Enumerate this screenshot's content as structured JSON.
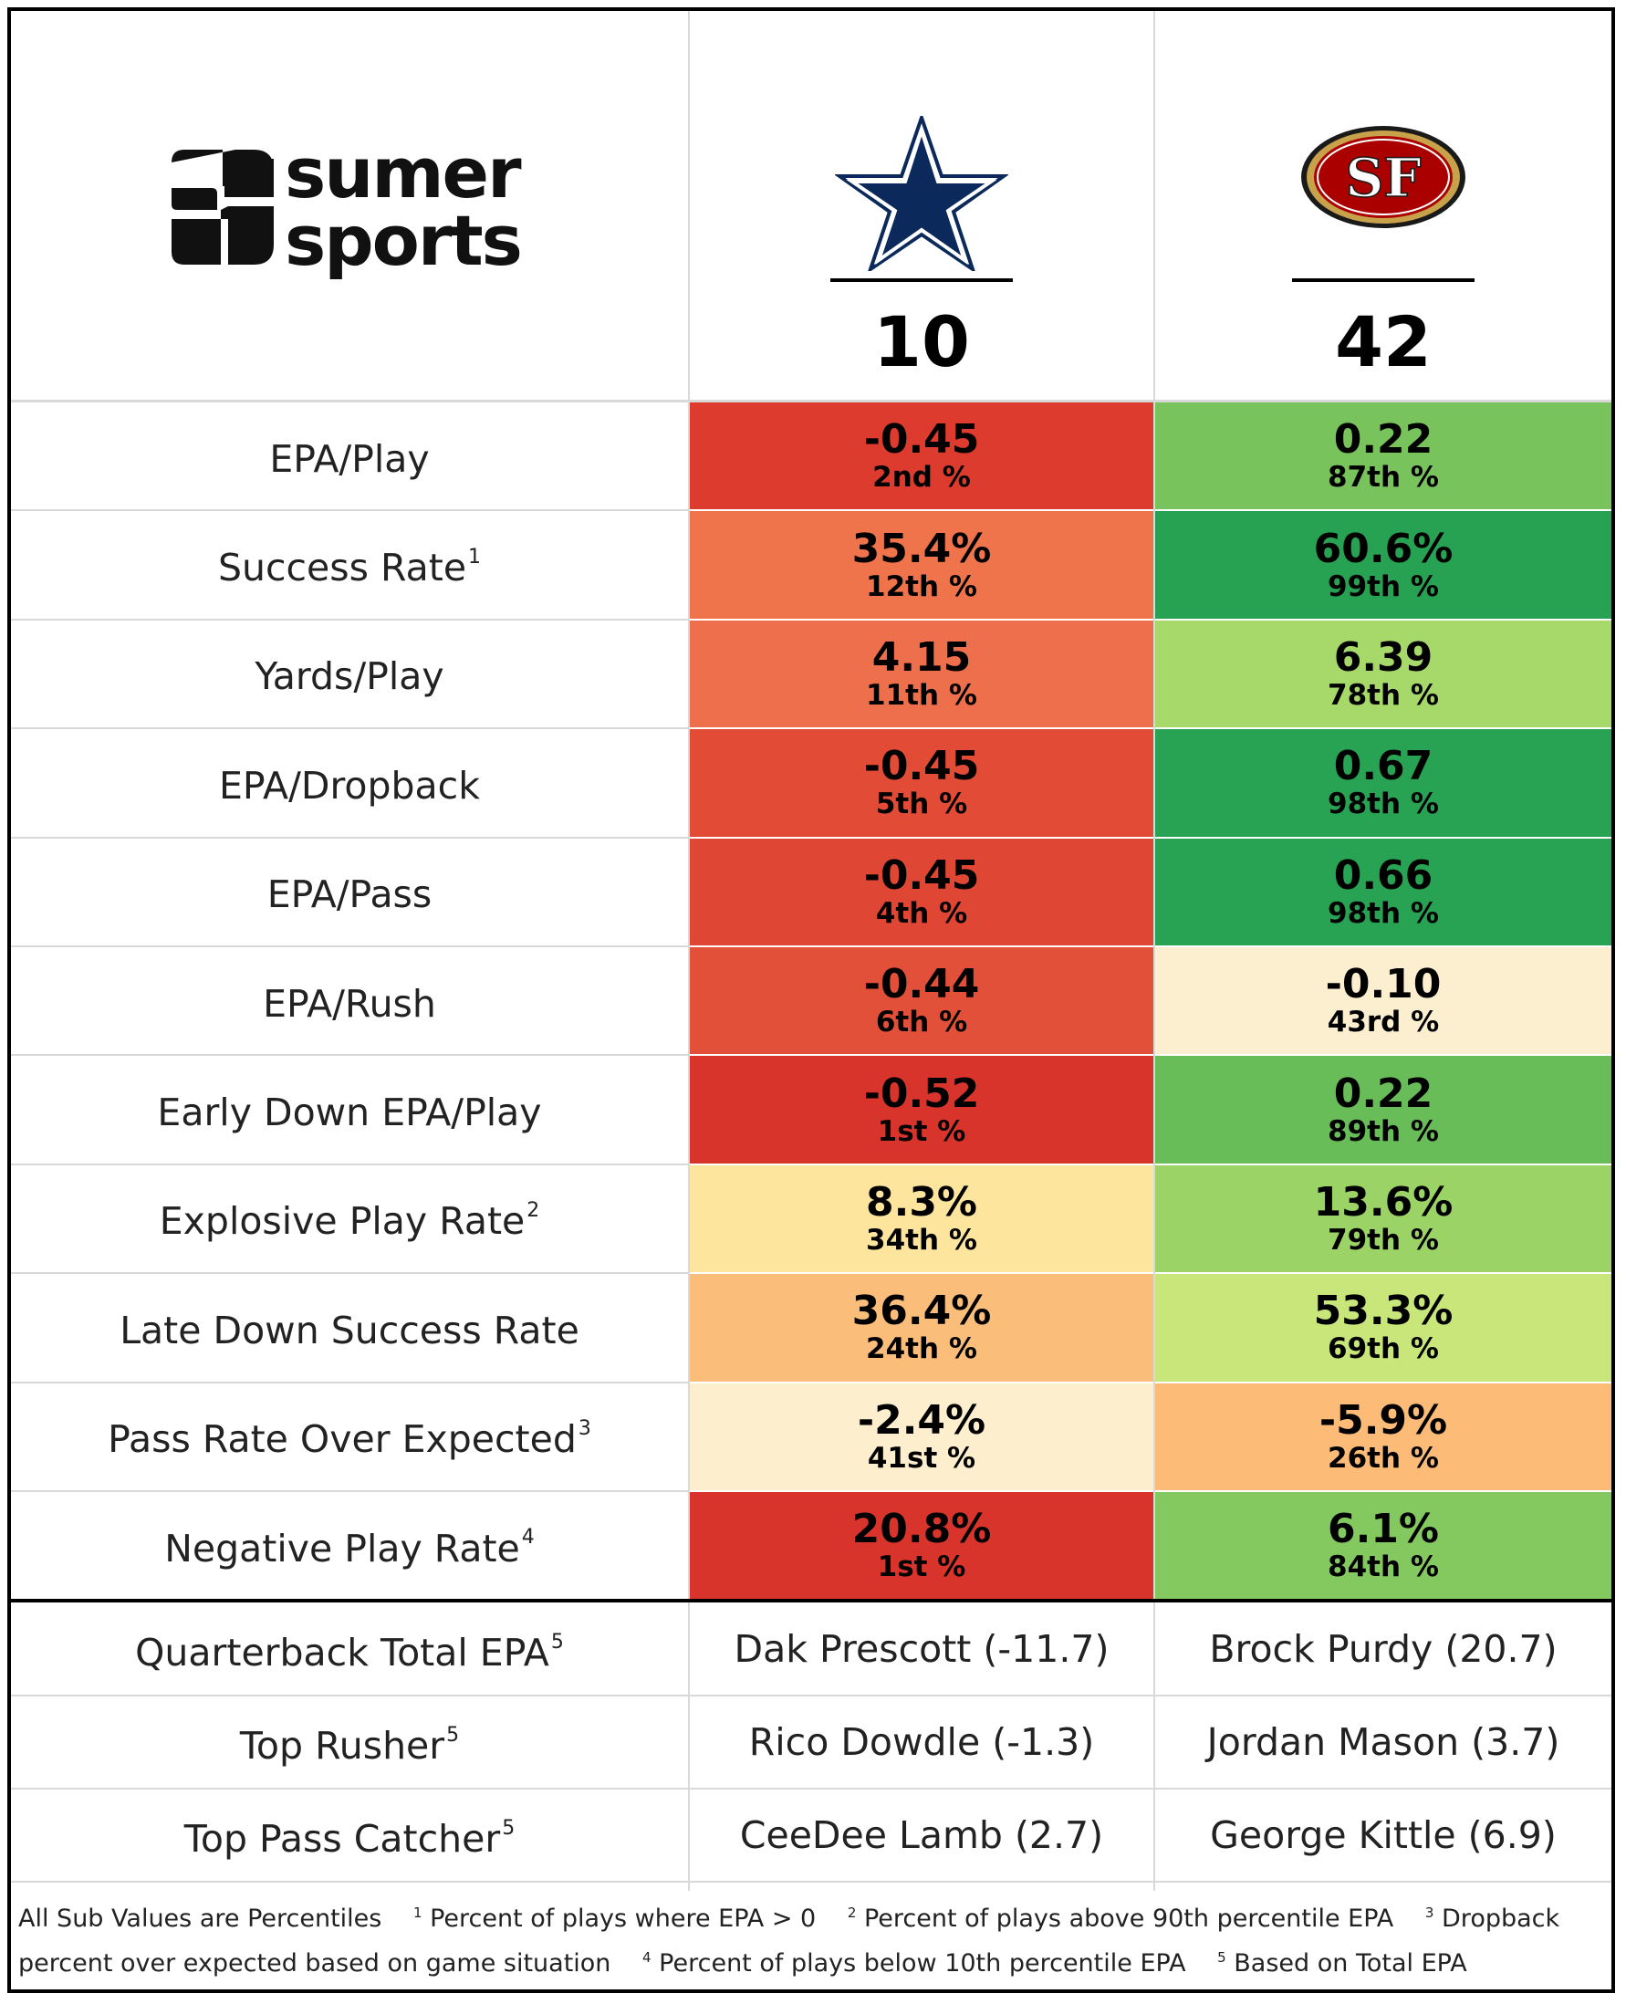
{
  "brand": {
    "line1": "sumer",
    "line2": "sports"
  },
  "teams": [
    {
      "name": "Dallas Cowboys",
      "logo": "cowboys-star-icon",
      "score": "10",
      "color": "#0b2a5b"
    },
    {
      "name": "San Francisco 49ers",
      "logo": "49ers-oval-icon",
      "score": "42",
      "color": "#aa0000"
    }
  ],
  "stats": [
    {
      "label": "EPA/Play",
      "sup": "",
      "left": {
        "value": "-0.45",
        "pct": "2nd %",
        "bg": "#dc3b2e"
      },
      "right": {
        "value": "0.22",
        "pct": "87th %",
        "bg": "#78c35c"
      }
    },
    {
      "label": "Success Rate",
      "sup": "1",
      "left": {
        "value": "35.4%",
        "pct": "12th %",
        "bg": "#ef744c"
      },
      "right": {
        "value": "60.6%",
        "pct": "99th %",
        "bg": "#27a152"
      }
    },
    {
      "label": "Yards/Play",
      "sup": "",
      "left": {
        "value": "4.15",
        "pct": "11th %",
        "bg": "#ee6f4b"
      },
      "right": {
        "value": "6.39",
        "pct": "78th %",
        "bg": "#a6d86a"
      }
    },
    {
      "label": "EPA/Dropback",
      "sup": "",
      "left": {
        "value": "-0.45",
        "pct": "5th %",
        "bg": "#e24b36"
      },
      "right": {
        "value": "0.67",
        "pct": "98th %",
        "bg": "#28a253"
      }
    },
    {
      "label": "EPA/Pass",
      "sup": "",
      "left": {
        "value": "-0.45",
        "pct": "4th %",
        "bg": "#e04634"
      },
      "right": {
        "value": "0.66",
        "pct": "98th %",
        "bg": "#28a253"
      }
    },
    {
      "label": "EPA/Rush",
      "sup": "",
      "left": {
        "value": "-0.44",
        "pct": "6th %",
        "bg": "#e25039"
      },
      "right": {
        "value": "-0.10",
        "pct": "43rd %",
        "bg": "#fcefcf"
      }
    },
    {
      "label": "Early Down EPA/Play",
      "sup": "",
      "left": {
        "value": "-0.52",
        "pct": "1st %",
        "bg": "#d8342c"
      },
      "right": {
        "value": "0.22",
        "pct": "89th %",
        "bg": "#69bd59"
      }
    },
    {
      "label": "Explosive Play Rate",
      "sup": "2",
      "left": {
        "value": "8.3%",
        "pct": "34th %",
        "bg": "#fde59d"
      },
      "right": {
        "value": "13.6%",
        "pct": "79th %",
        "bg": "#9bd367"
      }
    },
    {
      "label": "Late Down Success Rate",
      "sup": "",
      "left": {
        "value": "36.4%",
        "pct": "24th %",
        "bg": "#fbbd7a"
      },
      "right": {
        "value": "53.3%",
        "pct": "69th %",
        "bg": "#c8e67a"
      }
    },
    {
      "label": "Pass Rate Over Expected",
      "sup": "3",
      "left": {
        "value": "-2.4%",
        "pct": "41st %",
        "bg": "#fdefcd"
      },
      "right": {
        "value": "-5.9%",
        "pct": "26th %",
        "bg": "#fcbb77"
      }
    },
    {
      "label": "Negative Play Rate",
      "sup": "4",
      "left": {
        "value": "20.8%",
        "pct": "1st %",
        "bg": "#d8342c"
      },
      "right": {
        "value": "6.1%",
        "pct": "84th %",
        "bg": "#84c95f"
      }
    }
  ],
  "players": [
    {
      "label": "Quarterback Total EPA",
      "sup": "5",
      "left": "Dak Prescott (-11.7)",
      "right": "Brock Purdy (20.7)"
    },
    {
      "label": "Top Rusher",
      "sup": "5",
      "left": "Rico Dowdle (-1.3)",
      "right": "Jordan Mason (3.7)"
    },
    {
      "label": "Top Pass Catcher",
      "sup": "5",
      "left": "CeeDee Lamb (2.7)",
      "right": "George Kittle (6.9)"
    }
  ],
  "footnotes": {
    "intro": "All Sub Values are Percentiles",
    "notes": [
      {
        "num": "1",
        "text": "Percent of plays where EPA > 0"
      },
      {
        "num": "2",
        "text": "Percent of plays above 90th percentile EPA"
      },
      {
        "num": "3",
        "text": "Dropback percent over expected based on game situation"
      },
      {
        "num": "4",
        "text": "Percent of plays below 10th percentile EPA"
      },
      {
        "num": "5",
        "text": "Based on Total EPA"
      }
    ]
  }
}
